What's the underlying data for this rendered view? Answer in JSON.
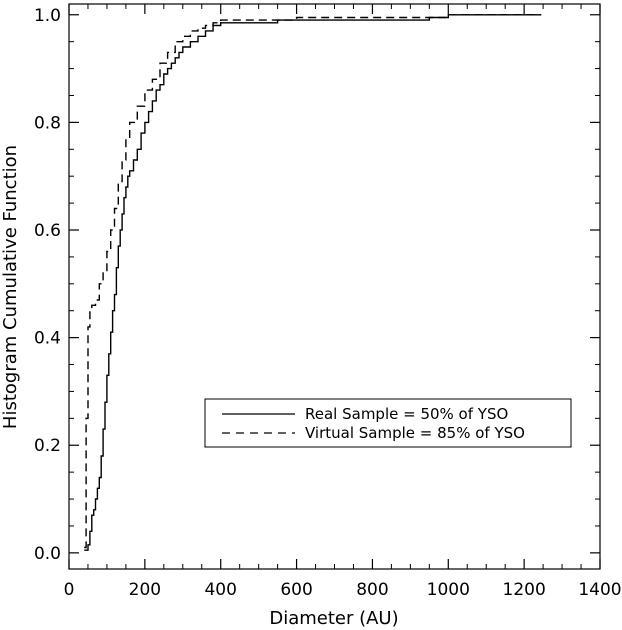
{
  "chart_data": {
    "type": "line",
    "title": "",
    "xlabel": "Diameter (AU)",
    "ylabel": "Histogram Cumulative Function",
    "xlim": [
      0,
      1400
    ],
    "ylim": [
      -0.03,
      1.02
    ],
    "x_ticks": [
      0,
      200,
      400,
      600,
      800,
      1000,
      1200,
      1400
    ],
    "y_ticks": [
      0.0,
      0.2,
      0.4,
      0.6,
      0.8,
      1.0
    ],
    "x_tick_labels": [
      "0",
      "200",
      "400",
      "600",
      "800",
      "1000",
      "1200",
      "1400"
    ],
    "y_tick_labels": [
      "0.0",
      "0.2",
      "0.4",
      "0.6",
      "0.8",
      "1.0"
    ],
    "grid": false,
    "legend_position": "center-right",
    "series": [
      {
        "name": "Real Sample = 50% of YSO",
        "line_style": "solid",
        "color": "#000000",
        "x": [
          40,
          50,
          55,
          60,
          65,
          70,
          75,
          80,
          85,
          90,
          95,
          100,
          105,
          110,
          115,
          120,
          125,
          130,
          135,
          140,
          145,
          150,
          155,
          160,
          170,
          180,
          190,
          200,
          210,
          220,
          230,
          240,
          250,
          260,
          270,
          280,
          290,
          300,
          320,
          340,
          360,
          380,
          400,
          420,
          550,
          600,
          950,
          1000,
          1245
        ],
        "y": [
          0.005,
          0.015,
          0.04,
          0.07,
          0.08,
          0.1,
          0.12,
          0.14,
          0.18,
          0.23,
          0.28,
          0.33,
          0.37,
          0.41,
          0.45,
          0.48,
          0.53,
          0.57,
          0.6,
          0.63,
          0.66,
          0.68,
          0.7,
          0.71,
          0.73,
          0.75,
          0.78,
          0.8,
          0.82,
          0.84,
          0.86,
          0.87,
          0.89,
          0.9,
          0.91,
          0.92,
          0.93,
          0.94,
          0.95,
          0.96,
          0.97,
          0.98,
          0.985,
          0.985,
          0.99,
          0.99,
          0.995,
          1.0,
          1.0
        ]
      },
      {
        "name": "Virtual Sample = 85% of YSO",
        "line_style": "dashed",
        "color": "#000000",
        "x": [
          40,
          45,
          50,
          55,
          60,
          70,
          80,
          90,
          100,
          110,
          120,
          130,
          140,
          150,
          160,
          180,
          200,
          220,
          240,
          260,
          280,
          300,
          320,
          340,
          360,
          380,
          400,
          550,
          600,
          950,
          1000,
          1245
        ],
        "y": [
          0.01,
          0.25,
          0.42,
          0.45,
          0.46,
          0.47,
          0.5,
          0.52,
          0.56,
          0.6,
          0.64,
          0.69,
          0.73,
          0.77,
          0.8,
          0.83,
          0.86,
          0.88,
          0.91,
          0.93,
          0.95,
          0.96,
          0.97,
          0.975,
          0.98,
          0.985,
          0.99,
          0.99,
          0.995,
          0.995,
          1.0,
          1.0
        ]
      }
    ]
  }
}
